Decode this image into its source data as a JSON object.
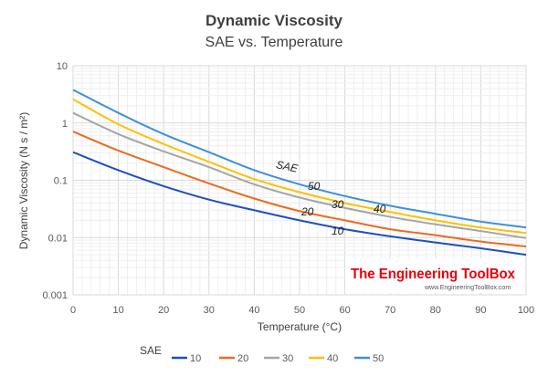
{
  "chart_data": {
    "type": "line",
    "title": "Dynamic Viscosity",
    "subtitle": "SAE vs. Temperature",
    "xlabel": "Temperature (°C)",
    "ylabel": "Dynamic Viscosity (N s / m²)",
    "xlim": [
      0,
      100
    ],
    "ylim": [
      0.001,
      10
    ],
    "yscale": "log",
    "grid": true,
    "x_ticks": [
      "0",
      "10",
      "20",
      "30",
      "40",
      "50",
      "60",
      "70",
      "80",
      "90",
      "100"
    ],
    "y_ticks": [
      "0.001",
      "0.01",
      "0.1",
      "1",
      "10"
    ],
    "x": [
      0,
      10,
      20,
      30,
      40,
      50,
      60,
      70,
      80,
      90,
      100
    ],
    "series": [
      {
        "name": "10",
        "color": "#1f4fc0",
        "values": [
          0.31,
          0.15,
          0.079,
          0.046,
          0.03,
          0.02,
          0.014,
          0.0105,
          0.0082,
          0.0065,
          0.005
        ]
      },
      {
        "name": "20",
        "color": "#ed6a1f",
        "values": [
          0.71,
          0.33,
          0.17,
          0.088,
          0.048,
          0.029,
          0.02,
          0.014,
          0.011,
          0.0085,
          0.007
        ]
      },
      {
        "name": "30",
        "color": "#a5a5a5",
        "values": [
          1.5,
          0.64,
          0.32,
          0.17,
          0.085,
          0.05,
          0.033,
          0.023,
          0.017,
          0.013,
          0.0098
        ]
      },
      {
        "name": "40",
        "color": "#ffc000",
        "values": [
          2.6,
          0.95,
          0.43,
          0.21,
          0.105,
          0.062,
          0.04,
          0.028,
          0.02,
          0.015,
          0.012
        ]
      },
      {
        "name": "50",
        "color": "#3f8fd8",
        "values": [
          3.8,
          1.5,
          0.64,
          0.31,
          0.15,
          0.085,
          0.053,
          0.036,
          0.026,
          0.019,
          0.015
        ]
      }
    ],
    "annotations": {
      "sae": "SAE",
      "l50": "50",
      "l30": "30",
      "l40": "40",
      "l20": "20",
      "l10": "10"
    },
    "legend": {
      "title": "SAE",
      "placement": "bottom"
    },
    "watermark": {
      "name": "The Engineering ToolBox",
      "url": "www.EngineeringToolBox.com"
    }
  }
}
